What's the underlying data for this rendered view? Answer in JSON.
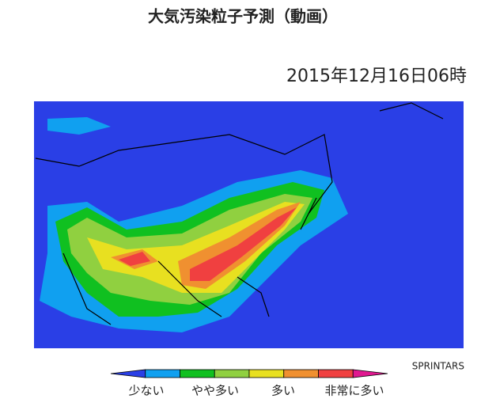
{
  "header": {
    "title": "大気汚染粒子予測（動画）",
    "timestamp": "2015年12月16日06時"
  },
  "colorbar": {
    "colors": [
      "#2a3fe6",
      "#10a0f0",
      "#10c020",
      "#90d040",
      "#e8e020",
      "#f09030",
      "#f04040",
      "#e01890"
    ],
    "labels": [
      "少ない",
      "やや多い",
      "多い",
      "非常に多い"
    ]
  },
  "credit": "SPRINTARS"
}
